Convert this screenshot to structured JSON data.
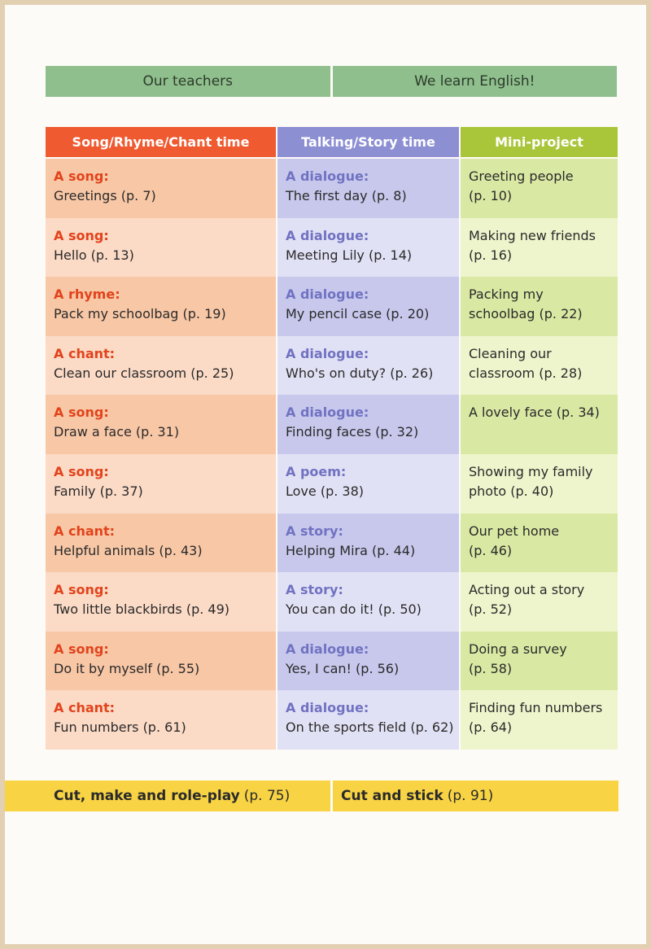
{
  "top_bar": {
    "left": "Our teachers",
    "right": "We learn English!"
  },
  "headers": {
    "col1": "Song/Rhyme/Chant time",
    "col2": "Talking/Story time",
    "col3": "Mini-project"
  },
  "rows": [
    {
      "c1_label": "A song:",
      "c1_text": "Greetings (p. 7)",
      "c2_label": "A dialogue:",
      "c2_text": "The first day (p. 8)",
      "c3_line1": "Greeting people",
      "c3_line2": "(p. 10)"
    },
    {
      "c1_label": "A song:",
      "c1_text": "Hello (p. 13)",
      "c2_label": "A dialogue:",
      "c2_text": "Meeting Lily (p. 14)",
      "c3_line1": "Making new friends",
      "c3_line2": "(p. 16)"
    },
    {
      "c1_label": "A rhyme:",
      "c1_text": "Pack my schoolbag (p. 19)",
      "c2_label": "A dialogue:",
      "c2_text": "My pencil case (p. 20)",
      "c3_line1": "Packing my",
      "c3_line2": "schoolbag (p. 22)"
    },
    {
      "c1_label": "A chant:",
      "c1_text": "Clean our classroom (p. 25)",
      "c2_label": "A dialogue:",
      "c2_text": "Who's on duty? (p. 26)",
      "c3_line1": "Cleaning our",
      "c3_line2": "classroom (p. 28)"
    },
    {
      "c1_label": "A song:",
      "c1_text": "Draw a face (p. 31)",
      "c2_label": "A dialogue:",
      "c2_text": "Finding faces (p. 32)",
      "c3_line1": "A lovely face (p. 34)",
      "c3_line2": ""
    },
    {
      "c1_label": "A song:",
      "c1_text": "Family (p. 37)",
      "c2_label": "A poem:",
      "c2_text": "Love (p. 38)",
      "c3_line1": "Showing my family",
      "c3_line2": "photo (p. 40)"
    },
    {
      "c1_label": "A chant:",
      "c1_text": "Helpful animals (p. 43)",
      "c2_label": "A story:",
      "c2_text": "Helping Mira (p. 44)",
      "c3_line1": "Our pet home",
      "c3_line2": "(p. 46)"
    },
    {
      "c1_label": "A song:",
      "c1_text": "Two little blackbirds (p. 49)",
      "c2_label": "A story:",
      "c2_text": "You can do it! (p. 50)",
      "c3_line1": "Acting out a story",
      "c3_line2": "(p. 52)"
    },
    {
      "c1_label": "A song:",
      "c1_text": "Do it by myself (p. 55)",
      "c2_label": "A dialogue:",
      "c2_text": "Yes, I can! (p. 56)",
      "c3_line1": "Doing a survey",
      "c3_line2": "(p. 58)"
    },
    {
      "c1_label": "A chant:",
      "c1_text": "Fun numbers (p. 61)",
      "c2_label": "A dialogue:",
      "c2_text": "On the sports field (p. 62)",
      "c3_line1": "Finding fun numbers",
      "c3_line2": "(p. 64)"
    }
  ],
  "bottom_bar": {
    "left_bold": "Cut, make and role-play",
    "left_page": "(p. 75)",
    "right_bold": "Cut and stick",
    "right_page": "(p. 91)"
  }
}
